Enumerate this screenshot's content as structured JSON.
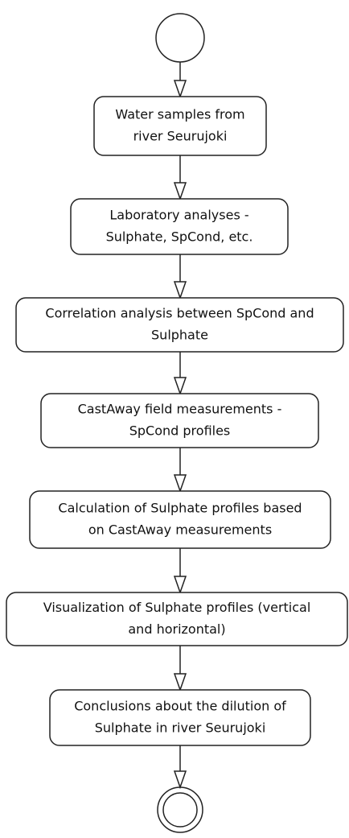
{
  "nodes": [
    {
      "lines": [
        "Water samples from",
        "river Seurujoki"
      ]
    },
    {
      "lines": [
        "Laboratory analyses -",
        "Sulphate, SpCond, etc."
      ]
    },
    {
      "lines": [
        "Correlation analysis between SpCond and",
        "Sulphate"
      ]
    },
    {
      "lines": [
        "CastAway field measurements -",
        "SpCond profiles"
      ]
    },
    {
      "lines": [
        "Calculation of Sulphate profiles based",
        "on CastAway measurements"
      ]
    },
    {
      "lines": [
        "Visualization of Sulphate profiles (vertical",
        "and horizontal)"
      ]
    },
    {
      "lines": [
        "Conclusions about the dilution of",
        "Sulphate in river Seurujoki"
      ]
    }
  ]
}
